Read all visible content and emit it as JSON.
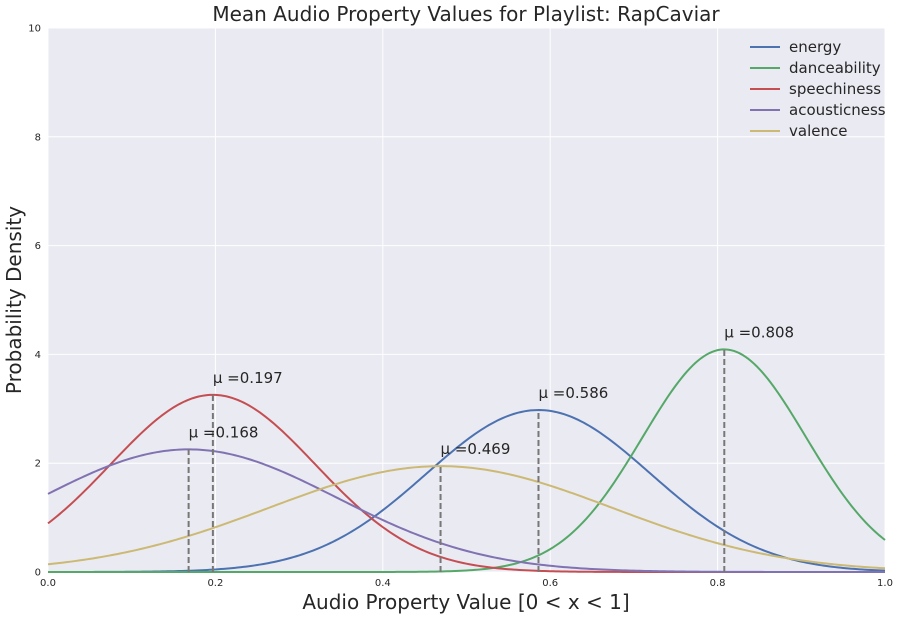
{
  "chart_data": {
    "type": "line",
    "title": "Mean Audio Property Values for Playlist: RapCaviar",
    "xlabel": "Audio Property Value [0 < x < 1]",
    "ylabel": "Probability Density",
    "xlim": [
      0,
      1
    ],
    "ylim": [
      0,
      10
    ],
    "xticks": [
      0.0,
      0.2,
      0.4,
      0.6,
      0.8,
      1.0
    ],
    "xtick_labels": [
      "0.0",
      "0.2",
      "0.4",
      "0.6",
      "0.8",
      "1.0"
    ],
    "yticks": [
      0,
      2,
      4,
      6,
      8,
      10
    ],
    "ytick_labels": [
      "0",
      "2",
      "4",
      "6",
      "8",
      "10"
    ],
    "grid": true,
    "legend_position": "top-right",
    "series": [
      {
        "name": "energy",
        "mean": 0.586,
        "sd": 0.134,
        "color": "#4c72b0",
        "annotation": "μ =0.586"
      },
      {
        "name": "danceability",
        "mean": 0.808,
        "sd": 0.0975,
        "color": "#55a868",
        "annotation": "μ =0.808"
      },
      {
        "name": "speechiness",
        "mean": 0.197,
        "sd": 0.1225,
        "color": "#c44e52",
        "annotation": "μ =0.197"
      },
      {
        "name": "acousticness",
        "mean": 0.168,
        "sd": 0.177,
        "color": "#8172b2",
        "annotation": "μ =0.168"
      },
      {
        "name": "valence",
        "mean": 0.469,
        "sd": 0.205,
        "color": "#ccb974",
        "annotation": "μ =0.469"
      }
    ]
  }
}
